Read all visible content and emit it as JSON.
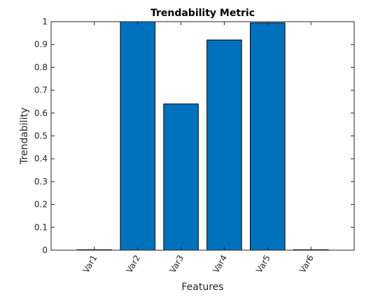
{
  "chart_data": {
    "type": "bar",
    "title": "Trendability Metric",
    "xlabel": "Features",
    "ylabel": "Trendability",
    "categories": [
      "Var1",
      "Var2",
      "Var3",
      "Var4",
      "Var5",
      "Var6"
    ],
    "values": [
      0.002,
      1.0,
      0.64,
      0.92,
      0.995,
      0.002
    ],
    "ylim": [
      0,
      1
    ],
    "yticks": [
      "0",
      "0.1",
      "0.2",
      "0.3",
      "0.4",
      "0.5",
      "0.6",
      "0.7",
      "0.8",
      "0.9",
      "1"
    ],
    "grid": false,
    "legend": "none",
    "colors": {
      "bar": "#0072BD",
      "bar_edge": "#000000",
      "axis": "#262626"
    }
  }
}
